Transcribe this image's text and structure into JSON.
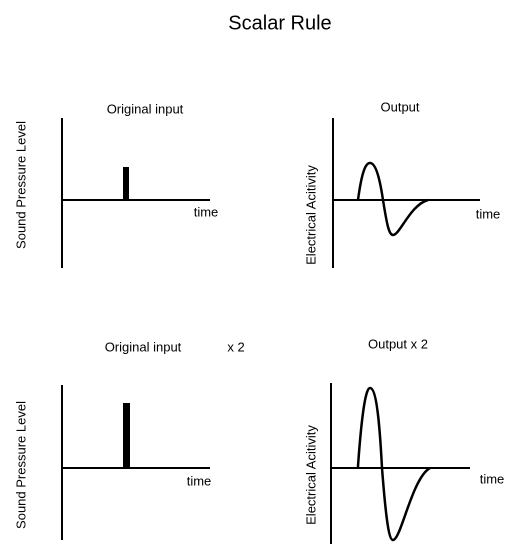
{
  "title": "Scalar Rule",
  "panels": [
    {
      "title": "Original input",
      "y_label": "Sound Pressure Level",
      "x_label": "time"
    },
    {
      "title": "Output",
      "y_label": "Electrical Acitivity",
      "x_label": "time"
    },
    {
      "title": "Original input",
      "note": "x 2",
      "y_label": "Sound Pressure Level",
      "x_label": "time"
    },
    {
      "title": "Output x 2",
      "y_label": "Electrical Acitivity",
      "x_label": "time"
    }
  ]
}
